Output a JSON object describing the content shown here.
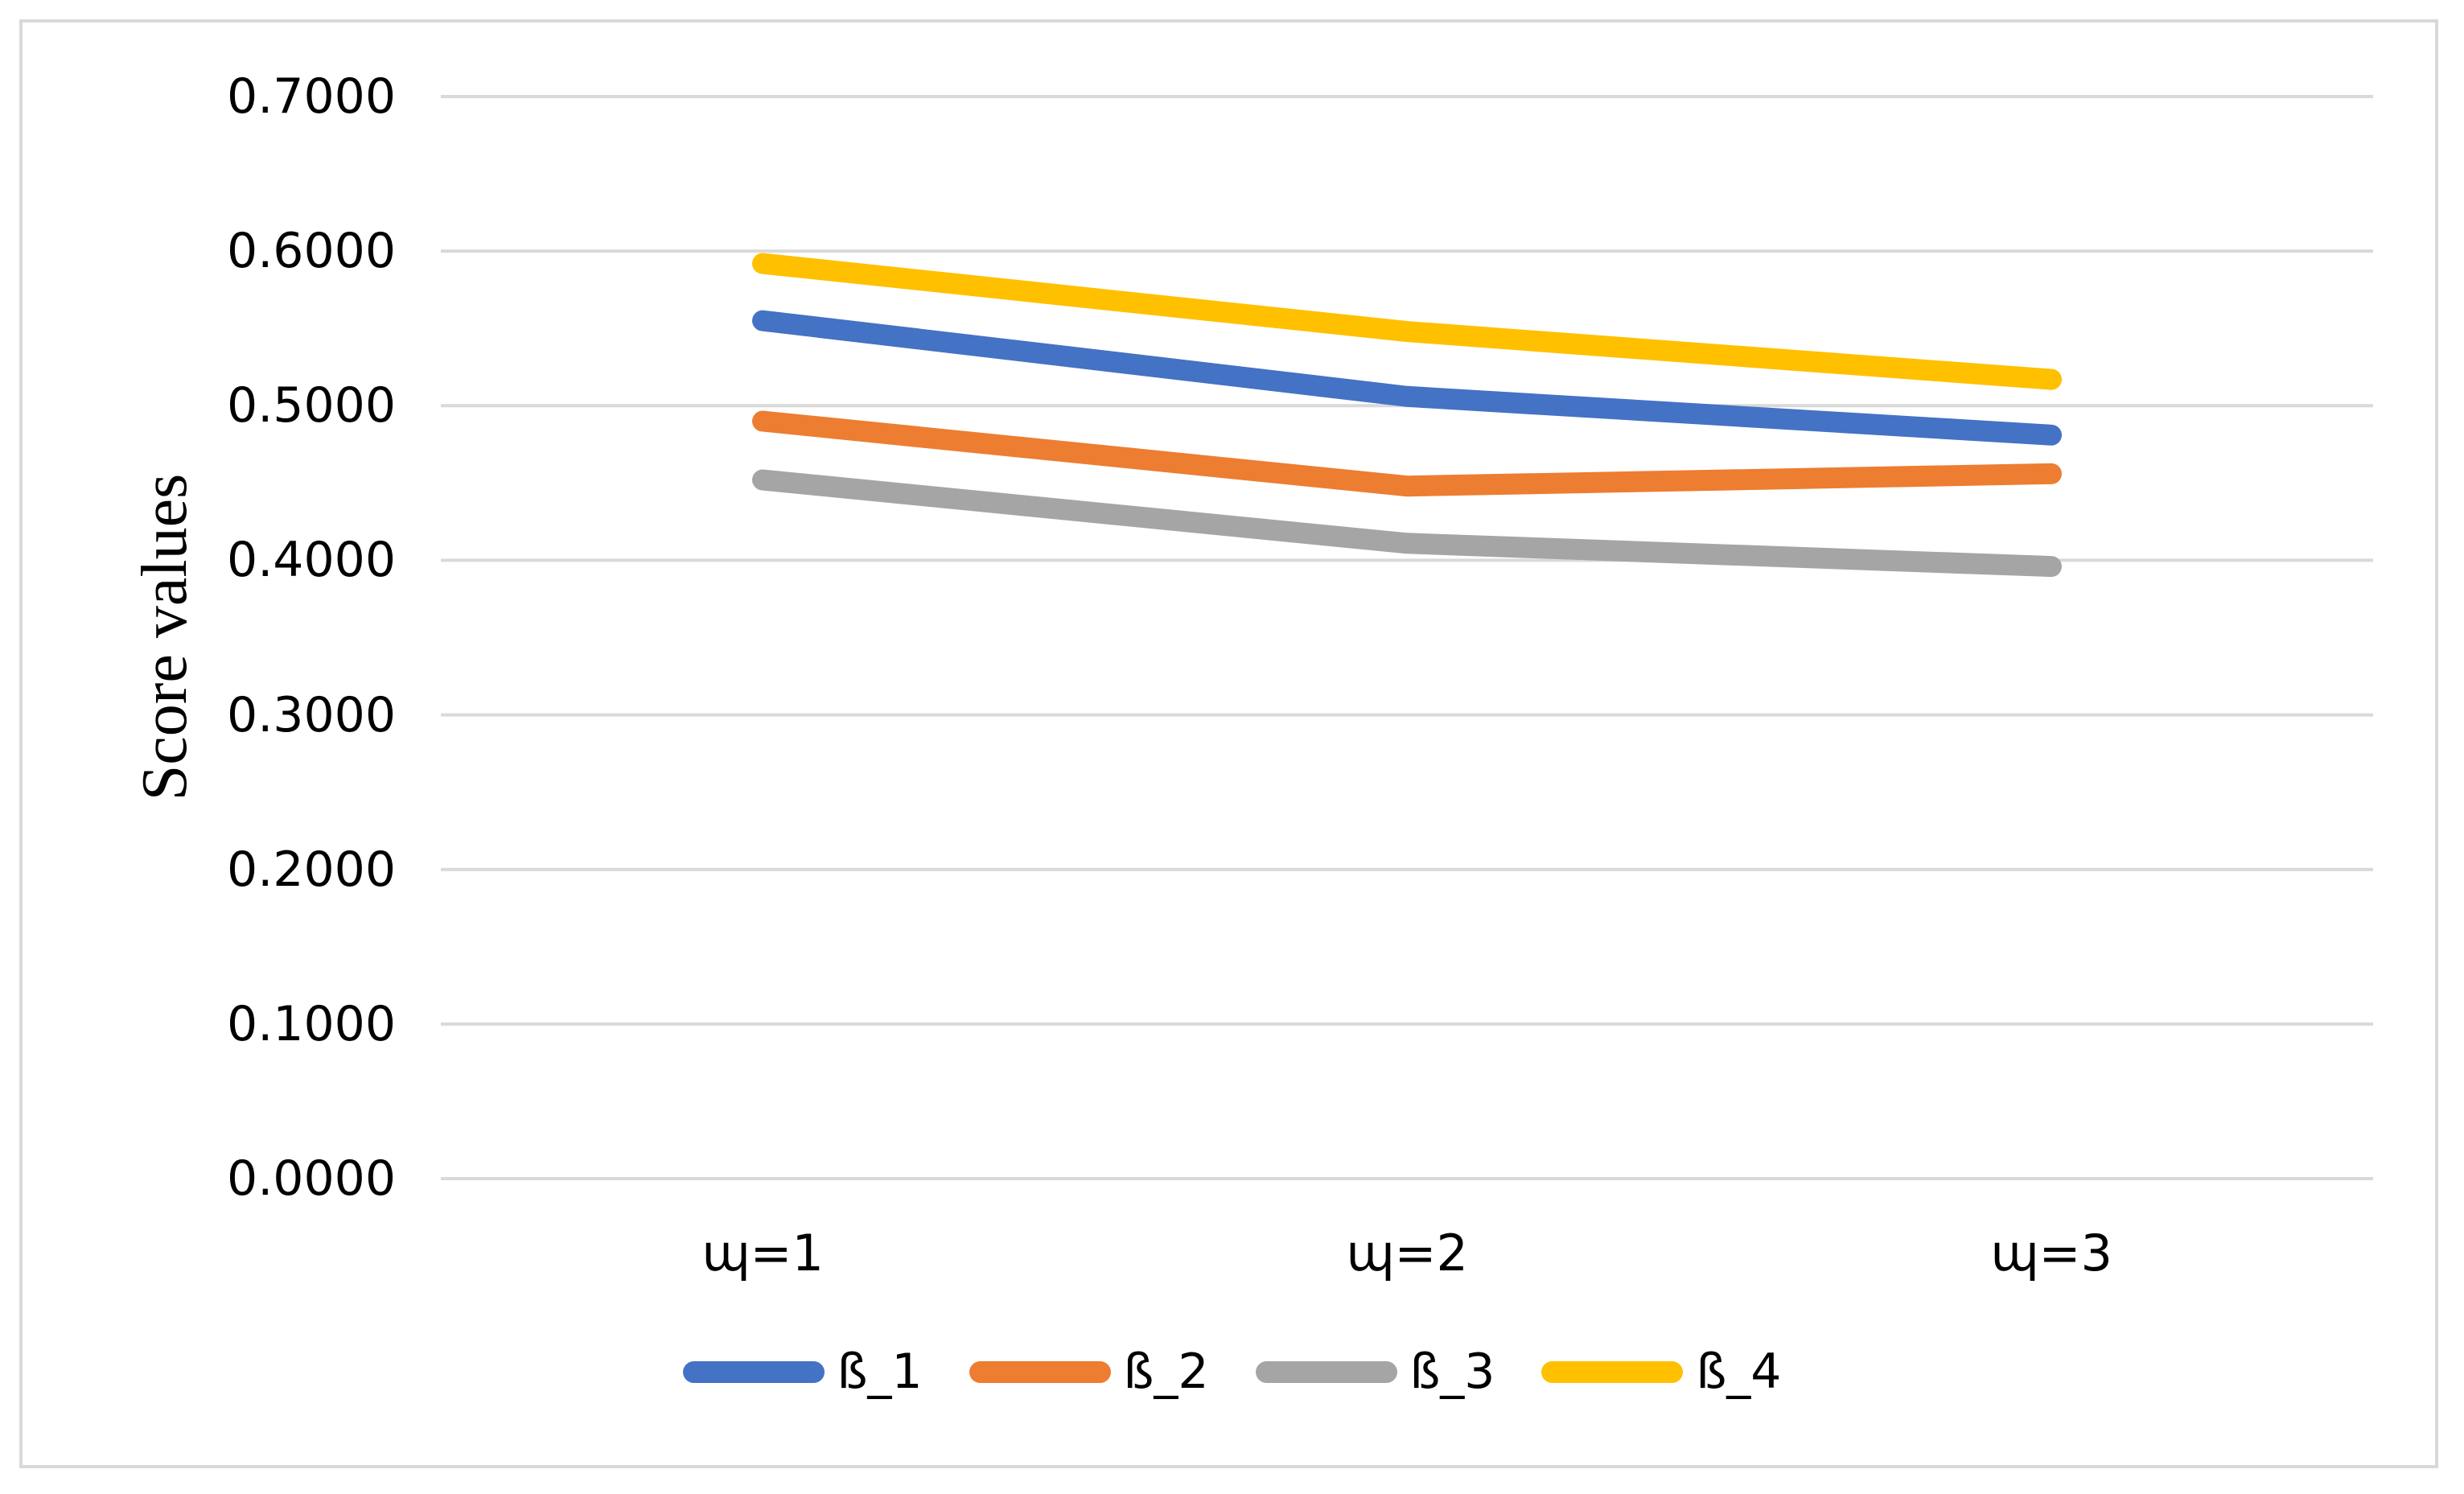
{
  "figure": {
    "background_color": "#FFFFFF",
    "border_color": "#D9D9D9"
  },
  "chart_data": {
    "type": "line",
    "title": "",
    "xlabel": "",
    "ylabel": "Score values",
    "categories": [
      "ɰ=1",
      "ɰ=2",
      "ɰ=3"
    ],
    "y_tick_labels": [
      "0.7000",
      "0.6000",
      "0.5000",
      "0.4000",
      "0.3000",
      "0.2000",
      "0.1000",
      "0.0000"
    ],
    "ylim": [
      0,
      0.7
    ],
    "y_step": 0.1,
    "grid": "horizontal",
    "gridline_color": "#D9D9D9",
    "line_width": 26,
    "legend_position": "bottom",
    "series": [
      {
        "name": "ß_1",
        "color": "#4472C4",
        "values": [
          0.555,
          0.506,
          0.481
        ]
      },
      {
        "name": "ß_2",
        "color": "#ED7D31",
        "values": [
          0.49,
          0.448,
          0.456
        ]
      },
      {
        "name": "ß_3",
        "color": "#A5A5A5",
        "values": [
          0.452,
          0.411,
          0.396
        ]
      },
      {
        "name": "ß_4",
        "color": "#FFC000",
        "values": [
          0.592,
          0.548,
          0.517
        ]
      }
    ]
  }
}
